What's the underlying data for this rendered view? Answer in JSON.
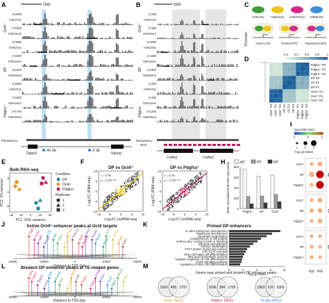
{
  "colors": {
    "dp": "#1f8a9a",
    "oct4": "#e2931e",
    "pdgfra": "#c2185b",
    "track": "#555555",
    "blue_hl": "#bfe0f5",
    "grey_hl": "#e6e6e6",
    "heat_hi": "#1a5f9c",
    "heat_lo": "#e6f5e0"
  },
  "panelA": {
    "label": "A",
    "scale": "20kb",
    "rows": [
      {
        "group": "Oct4⁺",
        "tracks": [
          {
            "name": "H3K27ac",
            "range": "0-2000"
          },
          {
            "name": "H3K4me1",
            "range": "0-1500"
          }
        ]
      },
      {
        "group": "DP",
        "tracks": [
          {
            "name": "H3K27ac",
            "range": "0-4600"
          },
          {
            "name": "H3K4me1",
            "range": "0-1800"
          },
          {
            "name": "H3K9me3",
            "range": "0-1500"
          }
        ]
      },
      {
        "group": "Pdgfra⁺",
        "tracks": [
          {
            "name": "H3K27ac",
            "range": "0-1850"
          },
          {
            "name": "H3K4me1",
            "range": "0-1500"
          },
          {
            "name": "H3K9me3",
            "range": "0-1700"
          }
        ]
      }
    ],
    "pluripotency": "Pluripotency",
    "genes": [
      "Dppa3",
      "Nanog"
    ],
    "enhancers": [
      "-45 SE",
      "-5 SE"
    ]
  },
  "panelB": {
    "label": "B",
    "scale": "50kb",
    "rows": [
      {
        "group": "Oct4⁺",
        "tracks": [
          {
            "name": "H3K27ac",
            "range": "0-250"
          },
          {
            "name": "H3K4me1",
            "range": "0-250"
          }
        ]
      },
      {
        "group": "DP",
        "tracks": [
          {
            "name": "H3K27ac",
            "range": "0-4000"
          },
          {
            "name": "H3K4me1",
            "range": "0-1500"
          },
          {
            "name": "H3K9me3",
            "range": "0-2300"
          }
        ]
      },
      {
        "group": "Pdgfra⁺",
        "tracks": [
          {
            "name": "H3K27ac",
            "range": "0-250"
          },
          {
            "name": "H3K4me1",
            "range": "0-250"
          },
          {
            "name": "H3K9me3",
            "range": "0-1200"
          }
        ]
      }
    ],
    "pluripotency": "Pluripotency",
    "extra_track": "rEnd",
    "genes": [
      "Col4a1",
      "Col4a2"
    ]
  },
  "panelC": {
    "label": "C",
    "marks": [
      {
        "name": "H3K27ac",
        "color": "#3f9e3a"
      },
      {
        "name": "H3K4me1",
        "color": "#f0c419"
      },
      {
        "name": "H3K27me3",
        "color": "#d6298a"
      },
      {
        "name": "H3K9me3",
        "color": "#3a8fd6"
      }
    ],
    "promoter": "Promoter",
    "states": [
      "Active (AP)",
      "Poised (PP)",
      "Repressed (RP)"
    ]
  },
  "panelD": {
    "label": "D",
    "legend_ticks": [
      "0.2",
      "0.4",
      "0.6",
      "0.8",
      "1"
    ],
    "rows": [
      "Pdgfra⁺ R3",
      "Pdgfra⁺ R2",
      "Pdgfra⁺ R1",
      "DP R3",
      "DP R2",
      "DP R1",
      "Oct4⁺ R2",
      "Oct4⁺ R1",
      "Oct4⁺ R3"
    ],
    "cols": [
      "Oct4⁺ R3",
      "Oct4⁺ R1",
      "Oct4⁺ R2",
      "DP R1",
      "DP R2",
      "DP R3",
      "Pdgfra⁺ R1",
      "Pdgfra⁺ R2",
      "Pdgfra⁺ R3"
    ],
    "values": [
      [
        0.3,
        0.28,
        0.3,
        0.55,
        0.55,
        0.58,
        0.95,
        0.97,
        1.0
      ],
      [
        0.3,
        0.28,
        0.3,
        0.55,
        0.58,
        0.58,
        0.96,
        1.0,
        0.97
      ],
      [
        0.28,
        0.28,
        0.28,
        0.55,
        0.55,
        0.55,
        1.0,
        0.96,
        0.95
      ],
      [
        0.45,
        0.45,
        0.45,
        0.95,
        0.96,
        1.0,
        0.55,
        0.58,
        0.58
      ],
      [
        0.45,
        0.45,
        0.45,
        0.96,
        1.0,
        0.96,
        0.55,
        0.58,
        0.55
      ],
      [
        0.45,
        0.45,
        0.48,
        1.0,
        0.96,
        0.95,
        0.55,
        0.55,
        0.55
      ],
      [
        0.95,
        0.97,
        1.0,
        0.48,
        0.45,
        0.45,
        0.28,
        0.3,
        0.3
      ],
      [
        0.95,
        1.0,
        0.97,
        0.45,
        0.45,
        0.45,
        0.28,
        0.28,
        0.28
      ],
      [
        1.0,
        0.95,
        0.95,
        0.45,
        0.45,
        0.45,
        0.28,
        0.3,
        0.3
      ]
    ]
  },
  "panelE": {
    "label": "E",
    "title": "Bulk RNA-seq",
    "xlabel": "PC1: 93% variance",
    "ylabel": "PC2: 3% variance",
    "xticks": [
      "-40",
      "-20",
      "0",
      "20",
      "40"
    ],
    "yticks": [
      "-6",
      "0",
      "6"
    ],
    "legend_condition": "Condition",
    "legend_replicate": "Replicate",
    "conditions": [
      "DP",
      "Oct4⁺",
      "Pdgfra⁺"
    ],
    "replicates": [
      "1",
      "2",
      "3"
    ]
  },
  "chart_data": [
    {
      "type": "scatter",
      "title": "DP vs Oct4⁺",
      "xlabel": "Log₂FC (scRNA-seq)",
      "ylabel": "Log₂FC (RNA-seq)",
      "annotation": [
        "r = 0.75",
        "ρ = 1.44⁻²¹⁵"
      ],
      "xlim": [
        -10,
        10
      ],
      "ylim": [
        -10,
        10
      ],
      "xticks": [
        "-10",
        "-5",
        "0",
        "5",
        "10"
      ],
      "yticks": [
        "-10",
        "-5",
        "0",
        "5",
        "10"
      ]
    },
    {
      "type": "scatter",
      "title": "DP vs Pdgfra⁺",
      "xlabel": "Log₂FC (scRNA-seq)",
      "ylabel": "Log₂FC (RNA-seq)",
      "annotation": [
        "r = 0.76",
        "ρ = 1.18⁻¹⁹⁰"
      ],
      "xlim": [
        -10,
        10
      ],
      "ylim": [
        -10,
        10
      ],
      "xticks": [
        "-10",
        "-5",
        "0",
        "5",
        "10"
      ],
      "yticks": [
        "-10",
        "-5",
        "0",
        "5",
        "10"
      ]
    },
    {
      "type": "bar",
      "ylabel": "Mean normalised bulk RNA-seq counts",
      "categories": [
        "Pdgfra⁺",
        "DP",
        "Oct4⁺"
      ],
      "series": [
        {
          "name": "AP",
          "values": [
            750,
            620,
            640
          ]
        },
        {
          "name": "PP",
          "values": [
            230,
            240,
            270
          ]
        },
        {
          "name": "RP",
          "values": [
            90,
            110,
            130
          ]
        }
      ],
      "ylim": [
        0,
        800
      ],
      "yticks": [
        "0",
        "200",
        "400",
        "600",
        "800"
      ]
    },
    {
      "type": "bar",
      "title": "Primed DP enhancers",
      "xlabel": "-log₁₀(p-value)",
      "categories": [
        "in utero embryonic development",
        "blastocyst development",
        "chromatin organization",
        "establishment of cell polarity",
        "embryo dev. ending in birth or hatching",
        "placenta development",
        "embryo implantation",
        "STAT protein import into nucleus",
        "JAK-STAT cascade",
        "inner cell mass cell differentiation",
        "fatty acid biosynthetic process",
        "negative regulation of cell differentiation",
        "nodal signaling pathway",
        "regulation of stem cell differentiation"
      ],
      "values": [
        7.4,
        6.2,
        5.4,
        4.6,
        4.1,
        3.5,
        3.0,
        2.6,
        2.4,
        2.2,
        2.0,
        1.9,
        1.8,
        1.6
      ],
      "xlim": [
        0,
        8
      ],
      "xticks": [
        "0",
        "2",
        "4",
        "6",
        "8"
      ]
    }
  ],
  "panelF": {
    "label": "F"
  },
  "panelH": {
    "label": "H",
    "legend": [
      "AP",
      "PP",
      "RP"
    ]
  },
  "panelI": {
    "label": "I",
    "legend_title1": "log₂(odds ratio)",
    "legend_title2": "-log₁₀(p-value)",
    "legend_ticks": [
      "-1",
      "0",
      "1"
    ],
    "size_ticks": [
      "1",
      "2",
      "3"
    ],
    "groups": [
      "AP",
      "PP",
      "RP"
    ],
    "rows": [
      "Oct4⁺",
      "DP",
      "Pdgfra⁺"
    ],
    "cols": [
      "Epi",
      "PrE"
    ]
  },
  "panelJ": {
    "label": "J",
    "title": "Active Oct4⁺ enhancer peaks at Oct4 targets",
    "xlabel": "Distance to TSS (bp)",
    "xticks": [
      "-20000",
      "-10000",
      "0",
      "10000",
      "20000"
    ],
    "genes": [
      "Tdgf1",
      "Foxd3",
      "Sall4",
      "Nanog",
      "Klf2",
      "Utf1",
      "Lefty1",
      "Tcf3",
      "Esrrb",
      "Prdm14",
      "Zfp42",
      "Dppa5a",
      "Sox2",
      "Pou5f1",
      "Dppa3",
      "Nr0b1",
      "Zic3",
      "Lin28a",
      "Fgf4",
      "Gdf3"
    ]
  },
  "panelK": {
    "label": "K"
  },
  "panelL": {
    "label": "L",
    "title": "Bivalent DP enhancer peaks at TE-related genes",
    "xlabel": "Distance to TSS (bp)",
    "xticks": [
      "-20000",
      "-10000",
      "0",
      "10000",
      "20000"
    ],
    "genes": [
      "Cdx2",
      "Gata3",
      "Tfap2c",
      "Krt18",
      "Elf5",
      "Eomes",
      "Ets2",
      "Tead4",
      "Hand1",
      "Krt8",
      "Gata2",
      "Tpbpa",
      "Prl3d1",
      "Esx1",
      "Ascl2",
      "Plac1",
      "Rhox5",
      "Tfeb"
    ]
  },
  "panelM": {
    "label": "M",
    "title": "Genes near primed and bivalent DP enhancer peaks",
    "venns": [
      {
        "left": "1693",
        "mid": "456",
        "right": "2797",
        "caption": "Oct4⁺ DEGs"
      },
      {
        "left": "1696",
        "mid": "384",
        "right": "1765",
        "caption": "Pdgfra⁺ DEGs"
      },
      {
        "left": "1863",
        "mid": "516",
        "right": "3365",
        "caption": "TE-like DEGs"
      }
    ]
  }
}
